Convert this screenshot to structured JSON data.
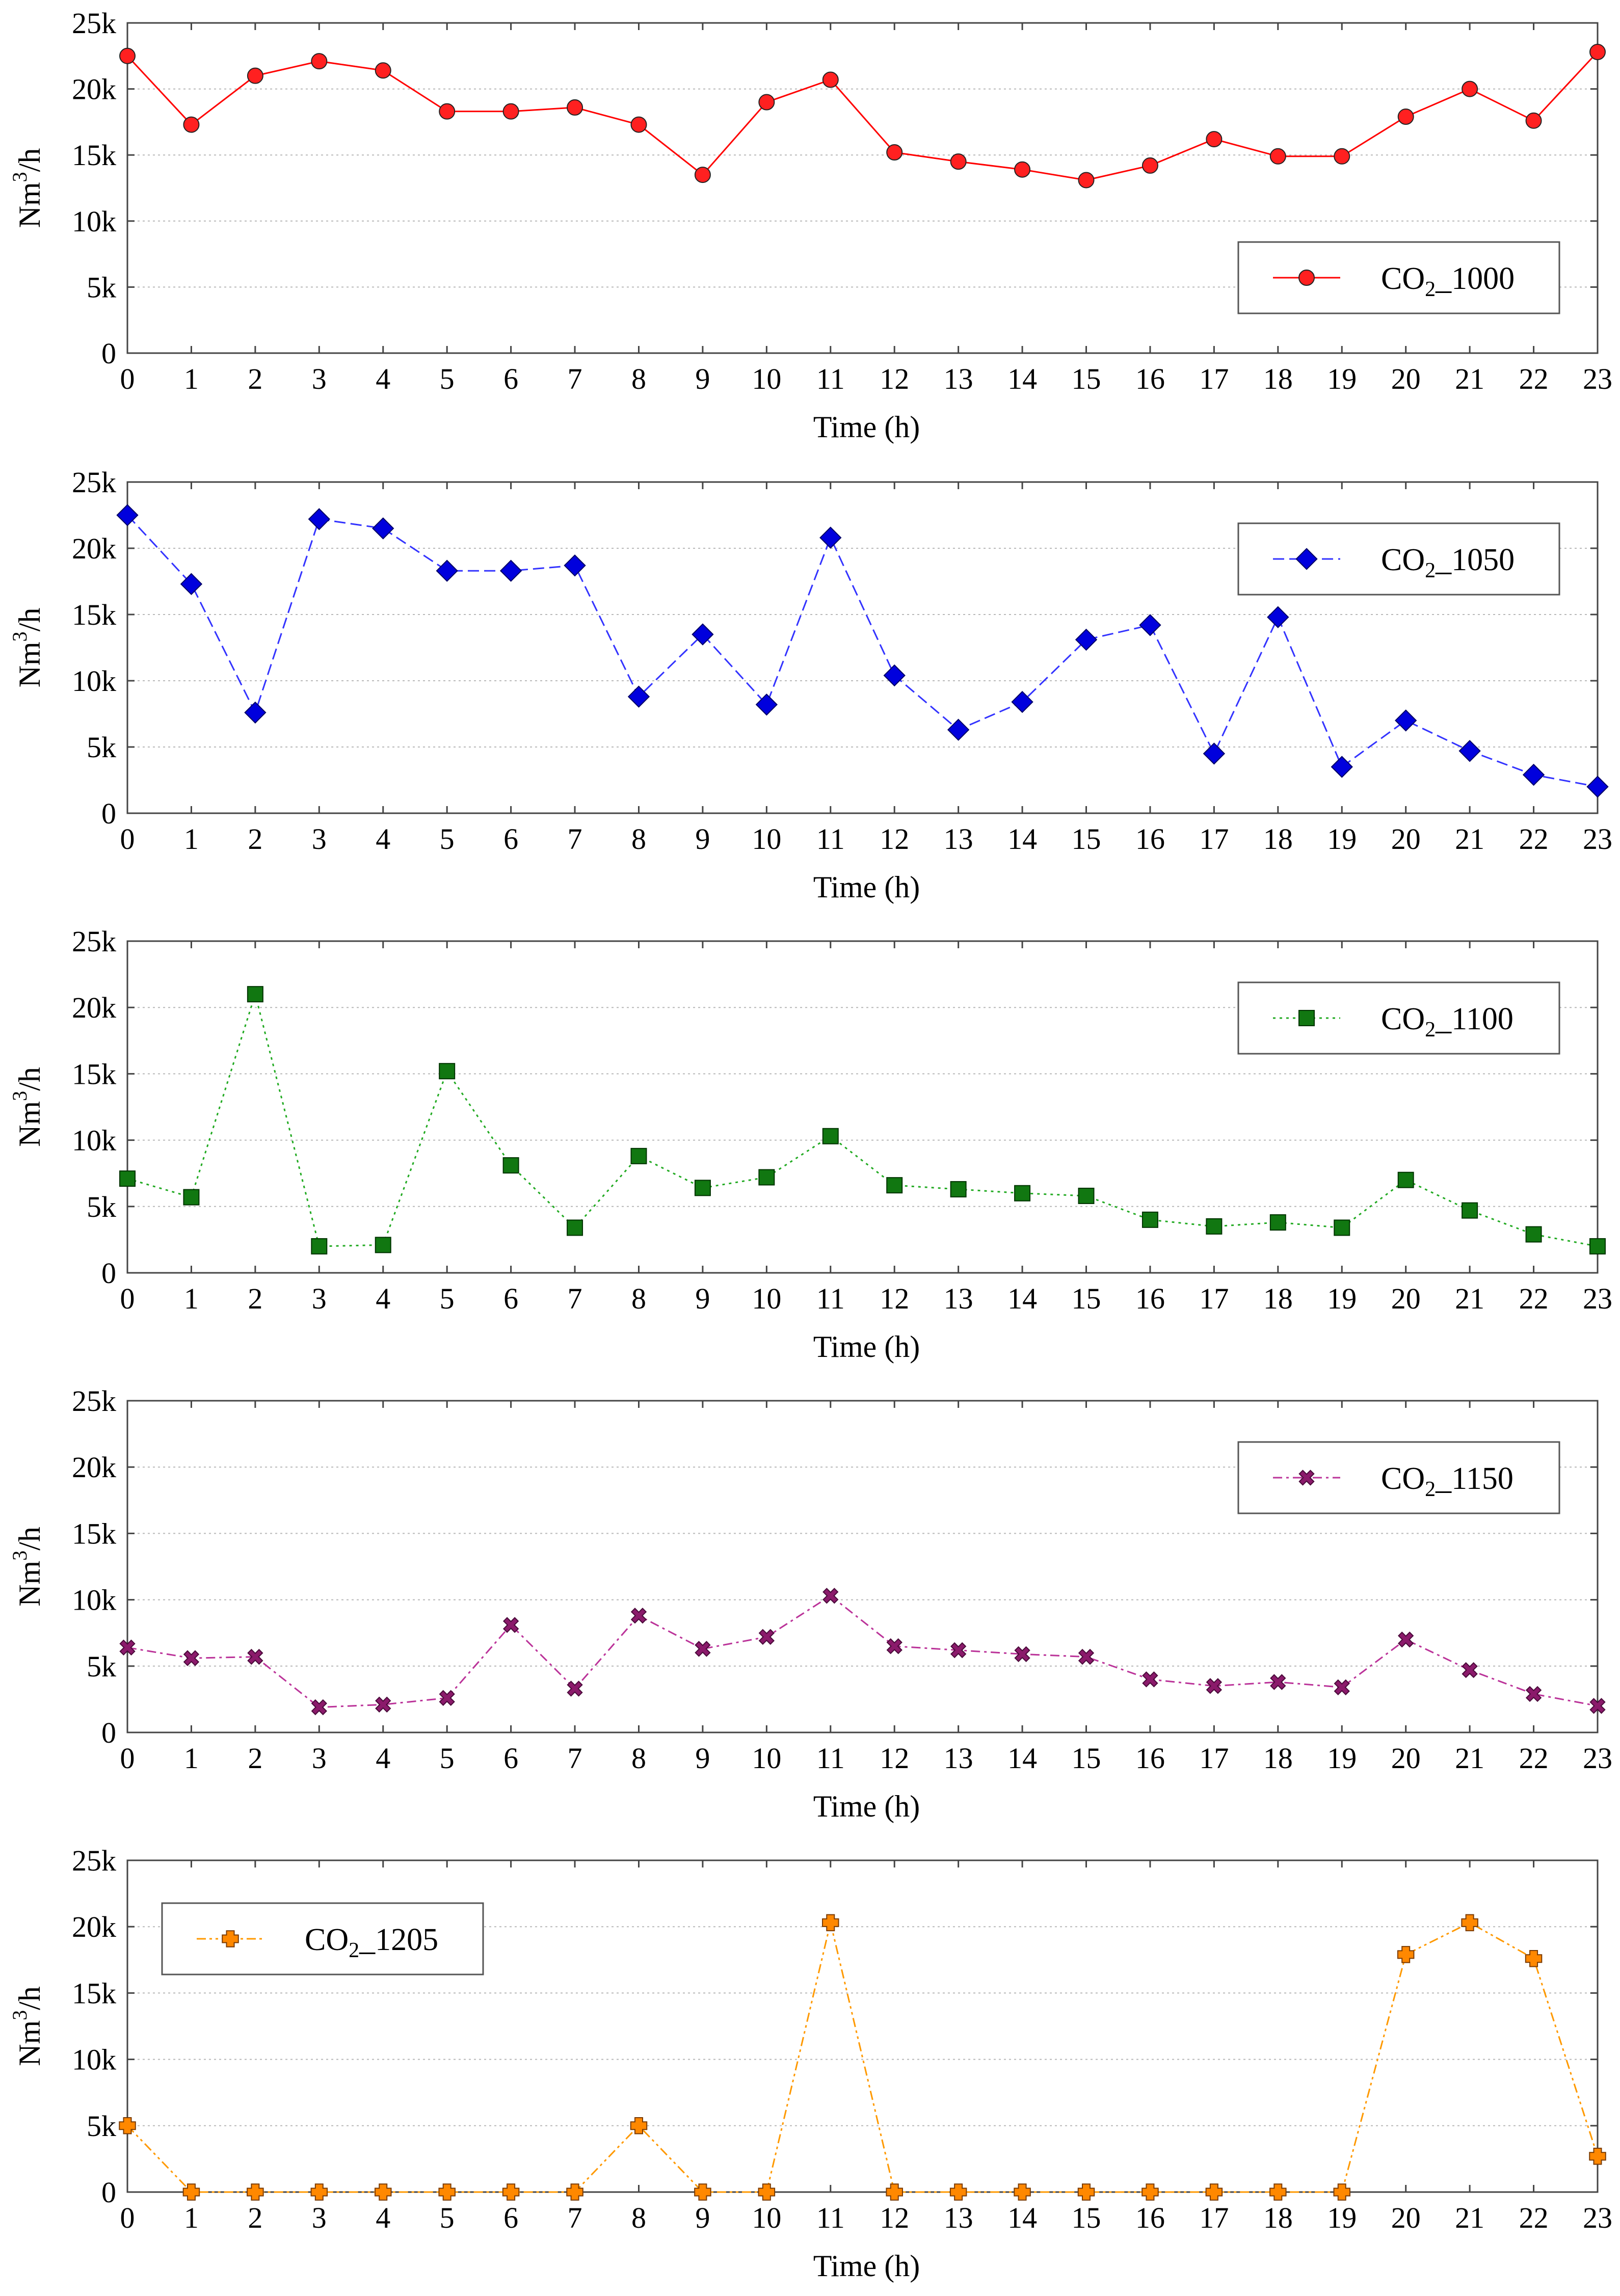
{
  "chart_data": [
    {
      "type": "line",
      "ylabel": "Nm",
      "ylabel_sup": "3",
      "ylabel_tail": "/h",
      "xlabel": "Time (h)",
      "ylim": [
        0,
        25000
      ],
      "yticks": [
        0,
        5000,
        10000,
        15000,
        20000,
        25000
      ],
      "ytick_labels": [
        "0",
        "5k",
        "10k",
        "15k",
        "20k",
        "25k"
      ],
      "xticks": [
        0,
        1,
        2,
        3,
        4,
        5,
        6,
        7,
        8,
        9,
        10,
        11,
        12,
        13,
        14,
        15,
        16,
        17,
        18,
        19,
        20,
        21,
        22,
        23
      ],
      "xtick_labels": [
        "0",
        "1",
        "2",
        "3",
        "4",
        "5",
        "6",
        "7",
        "8",
        "9",
        "10",
        "11",
        "12",
        "13",
        "14",
        "15",
        "16",
        "17",
        "18",
        "19",
        "20",
        "21",
        "22",
        "23"
      ],
      "grid": true,
      "legend_position": "lower-right",
      "series": [
        {
          "name": "CO2_1000",
          "legend_main": "CO",
          "legend_sub": "2",
          "legend_tail": "_1000",
          "color": "#ff0000",
          "fill": "#ff2020",
          "marker": "circle",
          "dash": "solid",
          "x": [
            0,
            1,
            2,
            3,
            4,
            5,
            6,
            7,
            8,
            9,
            10,
            11,
            12,
            13,
            14,
            15,
            16,
            17,
            18,
            19,
            20,
            21,
            22,
            23
          ],
          "values": [
            22500,
            17300,
            21000,
            22100,
            21400,
            18300,
            18300,
            18600,
            17300,
            13500,
            19000,
            20700,
            15200,
            14500,
            13900,
            13100,
            14200,
            16200,
            14900,
            14900,
            17900,
            20000,
            17600,
            22800
          ]
        }
      ]
    },
    {
      "type": "line",
      "ylabel": "Nm",
      "ylabel_sup": "3",
      "ylabel_tail": "/h",
      "xlabel": "Time (h)",
      "ylim": [
        0,
        25000
      ],
      "yticks": [
        0,
        5000,
        10000,
        15000,
        20000,
        25000
      ],
      "ytick_labels": [
        "0",
        "5k",
        "10k",
        "15k",
        "20k",
        "25k"
      ],
      "xticks": [
        0,
        1,
        2,
        3,
        4,
        5,
        6,
        7,
        8,
        9,
        10,
        11,
        12,
        13,
        14,
        15,
        16,
        17,
        18,
        19,
        20,
        21,
        22,
        23
      ],
      "xtick_labels": [
        "0",
        "1",
        "2",
        "3",
        "4",
        "5",
        "6",
        "7",
        "8",
        "9",
        "10",
        "11",
        "12",
        "13",
        "14",
        "15",
        "16",
        "17",
        "18",
        "19",
        "20",
        "21",
        "22",
        "23"
      ],
      "grid": true,
      "legend_position": "upper-right",
      "series": [
        {
          "name": "CO2_1050",
          "legend_main": "CO",
          "legend_sub": "2",
          "legend_tail": "_1050",
          "color": "#3333ff",
          "fill": "#0000dd",
          "marker": "diamond",
          "dash": "dashed",
          "x": [
            0,
            1,
            2,
            3,
            4,
            5,
            6,
            7,
            8,
            9,
            10,
            11,
            12,
            13,
            14,
            15,
            16,
            17,
            18,
            19,
            20,
            21,
            22,
            23
          ],
          "values": [
            22500,
            17300,
            7600,
            22200,
            21500,
            18300,
            18300,
            18700,
            8800,
            13500,
            8200,
            20800,
            10400,
            6300,
            8400,
            13100,
            14200,
            4500,
            14800,
            3500,
            7000,
            4700,
            2900,
            2000
          ]
        }
      ]
    },
    {
      "type": "line",
      "ylabel": "Nm",
      "ylabel_sup": "3",
      "ylabel_tail": "/h",
      "xlabel": "Time (h)",
      "ylim": [
        0,
        25000
      ],
      "yticks": [
        0,
        5000,
        10000,
        15000,
        20000,
        25000
      ],
      "ytick_labels": [
        "0",
        "5k",
        "10k",
        "15k",
        "20k",
        "25k"
      ],
      "xticks": [
        0,
        1,
        2,
        3,
        4,
        5,
        6,
        7,
        8,
        9,
        10,
        11,
        12,
        13,
        14,
        15,
        16,
        17,
        18,
        19,
        20,
        21,
        22,
        23
      ],
      "xtick_labels": [
        "0",
        "1",
        "2",
        "3",
        "4",
        "5",
        "6",
        "7",
        "8",
        "9",
        "10",
        "11",
        "12",
        "13",
        "14",
        "15",
        "16",
        "17",
        "18",
        "19",
        "20",
        "21",
        "22",
        "23"
      ],
      "grid": true,
      "legend_position": "upper-right",
      "series": [
        {
          "name": "CO2_1100",
          "legend_main": "CO",
          "legend_sub": "2",
          "legend_tail": "_1100",
          "color": "#22aa22",
          "fill": "#117711",
          "marker": "square",
          "dash": "dotted",
          "x": [
            0,
            1,
            2,
            3,
            4,
            5,
            6,
            7,
            8,
            9,
            10,
            11,
            12,
            13,
            14,
            15,
            16,
            17,
            18,
            19,
            20,
            21,
            22,
            23
          ],
          "values": [
            7100,
            5700,
            21000,
            2000,
            2100,
            15200,
            8100,
            3400,
            8800,
            6400,
            7200,
            10300,
            6600,
            6300,
            6000,
            5800,
            4000,
            3500,
            3800,
            3400,
            7000,
            4700,
            2900,
            2000
          ]
        }
      ]
    },
    {
      "type": "line",
      "ylabel": "Nm",
      "ylabel_sup": "3",
      "ylabel_tail": "/h",
      "xlabel": "Time (h)",
      "ylim": [
        0,
        25000
      ],
      "yticks": [
        0,
        5000,
        10000,
        15000,
        20000,
        25000
      ],
      "ytick_labels": [
        "0",
        "5k",
        "10k",
        "15k",
        "20k",
        "25k"
      ],
      "xticks": [
        0,
        1,
        2,
        3,
        4,
        5,
        6,
        7,
        8,
        9,
        10,
        11,
        12,
        13,
        14,
        15,
        16,
        17,
        18,
        19,
        20,
        21,
        22,
        23
      ],
      "xtick_labels": [
        "0",
        "1",
        "2",
        "3",
        "4",
        "5",
        "6",
        "7",
        "8",
        "9",
        "10",
        "11",
        "12",
        "13",
        "14",
        "15",
        "16",
        "17",
        "18",
        "19",
        "20",
        "21",
        "22",
        "23"
      ],
      "grid": true,
      "legend_position": "upper-right",
      "series": [
        {
          "name": "CO2_1150",
          "legend_main": "CO",
          "legend_sub": "2",
          "legend_tail": "_1150",
          "color": "#bb3399",
          "fill": "#8b1a6b",
          "marker": "cross",
          "dash": "dashdot",
          "x": [
            0,
            1,
            2,
            3,
            4,
            5,
            6,
            7,
            8,
            9,
            10,
            11,
            12,
            13,
            14,
            15,
            16,
            17,
            18,
            19,
            20,
            21,
            22,
            23
          ],
          "values": [
            6400,
            5600,
            5700,
            1900,
            2100,
            2600,
            8100,
            3300,
            8800,
            6300,
            7200,
            10300,
            6500,
            6200,
            5900,
            5700,
            4000,
            3500,
            3800,
            3400,
            7000,
            4700,
            2900,
            2000
          ]
        }
      ]
    },
    {
      "type": "line",
      "ylabel": "Nm",
      "ylabel_sup": "3",
      "ylabel_tail": "/h",
      "xlabel": "Time (h)",
      "ylim": [
        0,
        25000
      ],
      "yticks": [
        0,
        5000,
        10000,
        15000,
        20000,
        25000
      ],
      "ytick_labels": [
        "0",
        "5k",
        "10k",
        "15k",
        "20k",
        "25k"
      ],
      "xticks": [
        0,
        1,
        2,
        3,
        4,
        5,
        6,
        7,
        8,
        9,
        10,
        11,
        12,
        13,
        14,
        15,
        16,
        17,
        18,
        19,
        20,
        21,
        22,
        23
      ],
      "xtick_labels": [
        "0",
        "1",
        "2",
        "3",
        "4",
        "5",
        "6",
        "7",
        "8",
        "9",
        "10",
        "11",
        "12",
        "13",
        "14",
        "15",
        "16",
        "17",
        "18",
        "19",
        "20",
        "21",
        "22",
        "23"
      ],
      "grid": true,
      "legend_position": "upper-left",
      "series": [
        {
          "name": "CO2_1205",
          "legend_main": "CO",
          "legend_sub": "2",
          "legend_tail": "_1205",
          "color": "#ff9900",
          "fill": "#ff8800",
          "marker": "plus",
          "dash": "dashdotdot",
          "x": [
            0,
            1,
            2,
            3,
            4,
            5,
            6,
            7,
            8,
            9,
            10,
            11,
            12,
            13,
            14,
            15,
            16,
            17,
            18,
            19,
            20,
            21,
            22,
            23
          ],
          "values": [
            5000,
            0,
            0,
            0,
            0,
            0,
            0,
            0,
            5000,
            0,
            0,
            20300,
            0,
            0,
            0,
            0,
            0,
            0,
            0,
            0,
            17900,
            20300,
            17600,
            2700
          ]
        }
      ]
    }
  ]
}
